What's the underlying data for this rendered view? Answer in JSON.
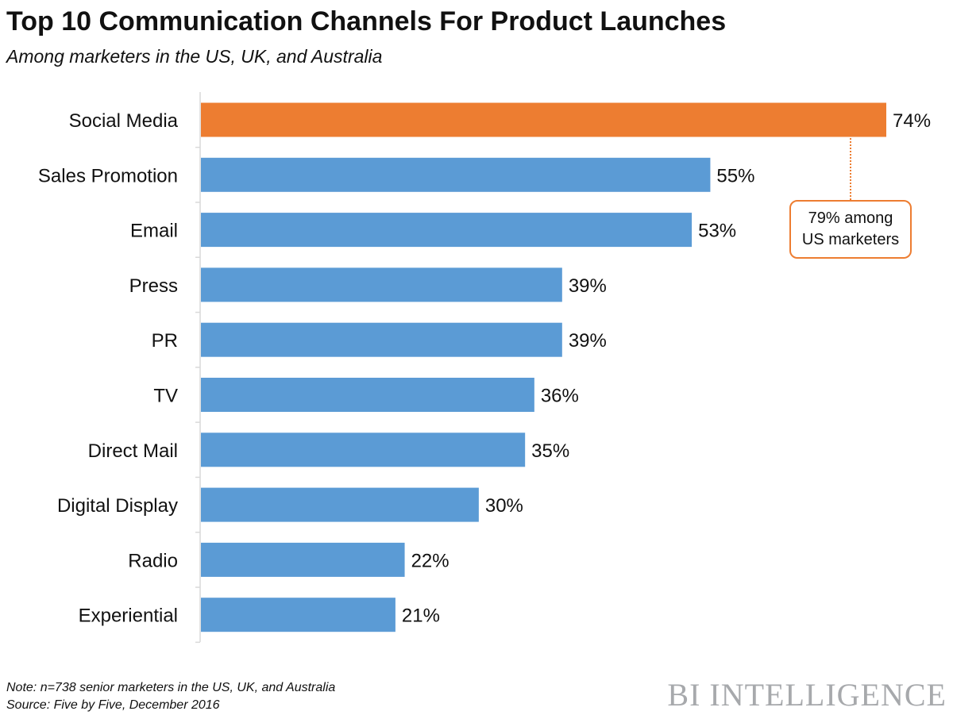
{
  "title": "Top 10 Communication Channels For Product Launches",
  "subtitle": "Among marketers in the US, UK, and Australia",
  "callout": {
    "line1": "79% among",
    "line2": "US marketers"
  },
  "note": "Note: n=738 senior marketers in the US, UK, and Australia",
  "source": "Source: Five by Five, December 2016",
  "brand": "BI INTELLIGENCE",
  "colors": {
    "highlight": "#ed7d31",
    "bar": "#5b9bd5"
  },
  "chart_data": {
    "type": "bar",
    "orientation": "horizontal",
    "categories": [
      "Social Media",
      "Sales Promotion",
      "Email",
      "Press",
      "PR",
      "TV",
      "Direct Mail",
      "Digital Display",
      "Radio",
      "Experiential"
    ],
    "values": [
      74,
      55,
      53,
      39,
      39,
      36,
      35,
      30,
      22,
      21
    ],
    "value_labels": [
      "74%",
      "55%",
      "53%",
      "39%",
      "39%",
      "36%",
      "35%",
      "30%",
      "22%",
      "21%"
    ],
    "highlight_index": 0,
    "xlim": [
      0,
      100
    ],
    "grid": false
  }
}
